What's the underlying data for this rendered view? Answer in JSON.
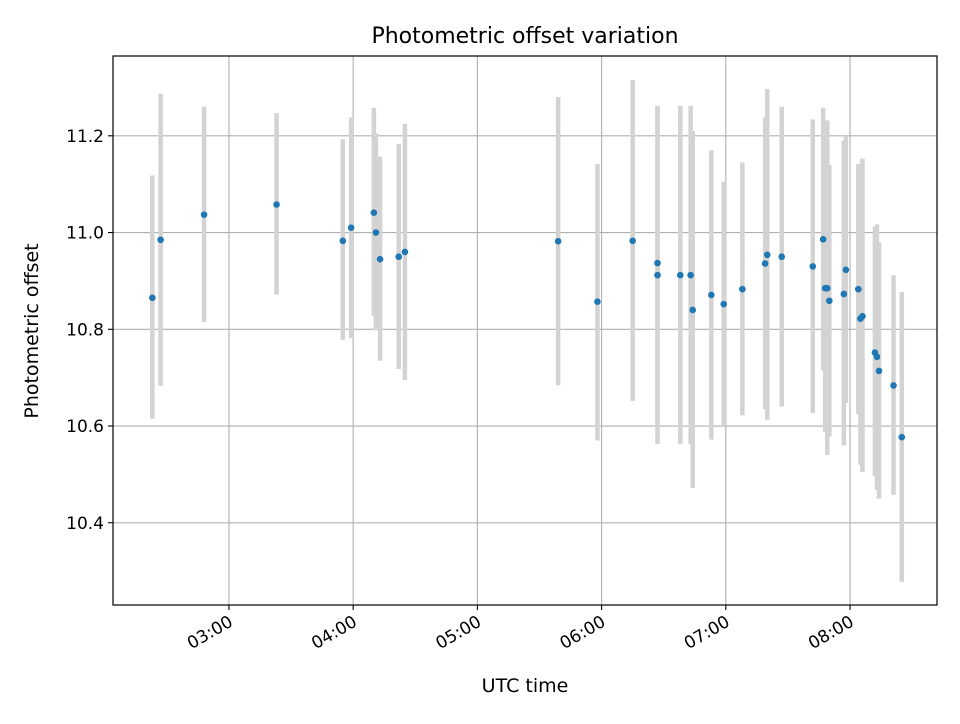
{
  "chart_data": {
    "type": "scatter",
    "title": "Photometric offset variation",
    "xlabel": "UTC time",
    "ylabel": "Photometric offset",
    "x_format": "HH:MM",
    "xlim": [
      "02:04",
      "08:42"
    ],
    "ylim": [
      10.23,
      11.365
    ],
    "x_ticks": [
      "03:00",
      "04:00",
      "05:00",
      "06:00",
      "07:00",
      "08:00"
    ],
    "y_ticks": [
      "10.4",
      "10.6",
      "10.8",
      "11.0",
      "11.2"
    ],
    "grid": true,
    "marker_color": "#1f77b4",
    "errorbar_color": "#d3d3d3",
    "points": [
      {
        "x": "02:23",
        "y": 10.865,
        "y_low": 10.615,
        "y_high": 11.118
      },
      {
        "x": "02:27",
        "y": 10.985,
        "y_low": 10.683,
        "y_high": 11.287
      },
      {
        "x": "02:48",
        "y": 11.037,
        "y_low": 10.815,
        "y_high": 11.26
      },
      {
        "x": "03:23",
        "y": 11.058,
        "y_low": 10.872,
        "y_high": 11.247
      },
      {
        "x": "03:55",
        "y": 10.983,
        "y_low": 10.778,
        "y_high": 11.193
      },
      {
        "x": "03:59",
        "y": 11.01,
        "y_low": 10.782,
        "y_high": 11.238
      },
      {
        "x": "04:10",
        "y": 11.041,
        "y_low": 10.828,
        "y_high": 11.258
      },
      {
        "x": "04:11",
        "y": 11.0,
        "y_low": 10.798,
        "y_high": 11.205
      },
      {
        "x": "04:13",
        "y": 10.945,
        "y_low": 10.735,
        "y_high": 11.157
      },
      {
        "x": "04:22",
        "y": 10.95,
        "y_low": 10.718,
        "y_high": 11.183
      },
      {
        "x": "04:25",
        "y": 10.96,
        "y_low": 10.695,
        "y_high": 11.225
      },
      {
        "x": "05:39",
        "y": 10.982,
        "y_low": 10.684,
        "y_high": 11.28
      },
      {
        "x": "05:58",
        "y": 10.857,
        "y_low": 10.57,
        "y_high": 11.142
      },
      {
        "x": "06:15",
        "y": 10.983,
        "y_low": 10.652,
        "y_high": 11.315
      },
      {
        "x": "06:27",
        "y": 10.937,
        "y_low": 10.612,
        "y_high": 11.262
      },
      {
        "x": "06:27",
        "y": 10.912,
        "y_low": 10.563,
        "y_high": 11.262
      },
      {
        "x": "06:38",
        "y": 10.912,
        "y_low": 10.563,
        "y_high": 11.262
      },
      {
        "x": "06:43",
        "y": 10.912,
        "y_low": 10.563,
        "y_high": 11.262
      },
      {
        "x": "06:44",
        "y": 10.84,
        "y_low": 10.472,
        "y_high": 11.21
      },
      {
        "x": "06:53",
        "y": 10.871,
        "y_low": 10.572,
        "y_high": 11.17
      },
      {
        "x": "06:59",
        "y": 10.852,
        "y_low": 10.6,
        "y_high": 11.105
      },
      {
        "x": "07:08",
        "y": 10.883,
        "y_low": 10.622,
        "y_high": 11.145
      },
      {
        "x": "07:19",
        "y": 10.936,
        "y_low": 10.635,
        "y_high": 11.238
      },
      {
        "x": "07:20",
        "y": 10.954,
        "y_low": 10.613,
        "y_high": 11.297
      },
      {
        "x": "07:27",
        "y": 10.95,
        "y_low": 10.64,
        "y_high": 11.26
      },
      {
        "x": "07:42",
        "y": 10.93,
        "y_low": 10.627,
        "y_high": 11.234
      },
      {
        "x": "07:47",
        "y": 10.986,
        "y_low": 10.715,
        "y_high": 11.258
      },
      {
        "x": "07:48",
        "y": 10.885,
        "y_low": 10.588,
        "y_high": 11.182
      },
      {
        "x": "07:49",
        "y": 10.885,
        "y_low": 10.54,
        "y_high": 11.232
      },
      {
        "x": "07:50",
        "y": 10.859,
        "y_low": 10.578,
        "y_high": 11.14
      },
      {
        "x": "07:57",
        "y": 10.873,
        "y_low": 10.56,
        "y_high": 11.19
      },
      {
        "x": "07:58",
        "y": 10.923,
        "y_low": 10.648,
        "y_high": 11.2
      },
      {
        "x": "08:04",
        "y": 10.883,
        "y_low": 10.625,
        "y_high": 11.142
      },
      {
        "x": "08:05",
        "y": 10.822,
        "y_low": 10.52,
        "y_high": 11.125
      },
      {
        "x": "08:06",
        "y": 10.827,
        "y_low": 10.505,
        "y_high": 11.153
      },
      {
        "x": "08:12",
        "y": 10.752,
        "y_low": 10.497,
        "y_high": 11.012
      },
      {
        "x": "08:13",
        "y": 10.743,
        "y_low": 10.468,
        "y_high": 11.017
      },
      {
        "x": "08:14",
        "y": 10.714,
        "y_low": 10.45,
        "y_high": 10.98
      },
      {
        "x": "08:21",
        "y": 10.684,
        "y_low": 10.458,
        "y_high": 10.912
      },
      {
        "x": "08:25",
        "y": 10.577,
        "y_low": 10.278,
        "y_high": 10.877
      }
    ]
  }
}
